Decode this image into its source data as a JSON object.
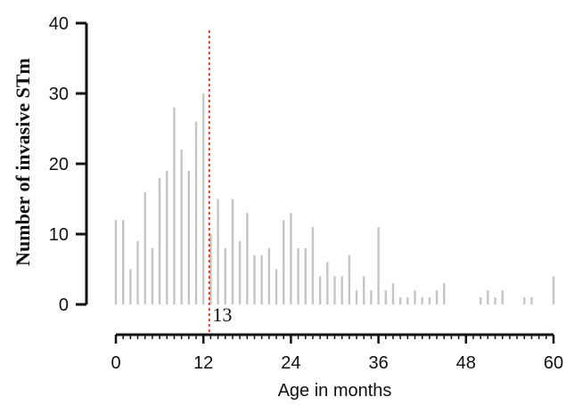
{
  "chart_data": {
    "type": "bar",
    "xlabel": "Age in months",
    "ylabel": "Number of invasive STm",
    "xlim": [
      0,
      60
    ],
    "ylim": [
      0,
      40
    ],
    "xticks": [
      0,
      12,
      24,
      36,
      48,
      60
    ],
    "yticks": [
      0,
      10,
      20,
      30,
      40
    ],
    "x": [
      0,
      1,
      2,
      3,
      4,
      5,
      6,
      7,
      8,
      9,
      10,
      11,
      12,
      13,
      14,
      15,
      16,
      17,
      18,
      19,
      20,
      21,
      22,
      23,
      24,
      25,
      26,
      27,
      28,
      29,
      30,
      31,
      32,
      33,
      34,
      35,
      36,
      37,
      38,
      39,
      40,
      41,
      42,
      43,
      44,
      45,
      46,
      47,
      48,
      49,
      50,
      51,
      52,
      53,
      54,
      55,
      56,
      57,
      58,
      59,
      60
    ],
    "values": [
      12,
      12,
      5,
      9,
      16,
      8,
      18,
      19,
      28,
      22,
      19,
      26,
      30,
      10,
      15,
      8,
      15,
      9,
      13,
      7,
      7,
      8,
      5,
      12,
      13,
      8,
      8,
      11,
      4,
      6,
      4,
      4,
      7,
      2,
      4,
      2,
      11,
      2,
      3,
      1,
      1,
      2,
      1,
      1,
      2,
      3,
      0,
      0,
      0,
      0,
      1,
      2,
      1,
      2,
      0,
      0,
      1,
      1,
      0,
      0,
      4
    ],
    "bar_color": "#c9c4c0",
    "vline": {
      "x": 12.8,
      "color": "#e0301e",
      "style": "dashed"
    },
    "annotation": {
      "text": "13",
      "x": 13
    },
    "grid": false
  }
}
